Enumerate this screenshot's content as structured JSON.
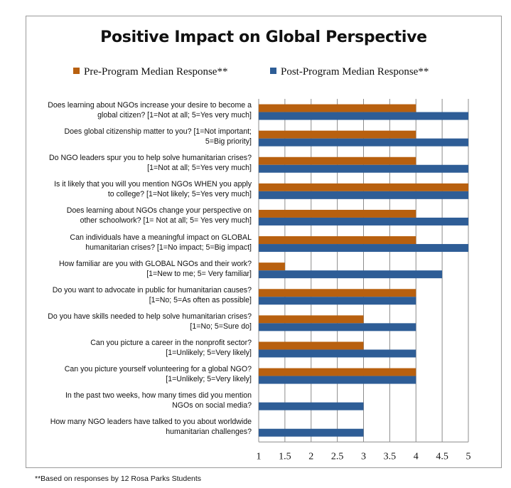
{
  "chart_data": {
    "type": "bar",
    "orientation": "horizontal",
    "title": "Positive Impact on Global Perspective",
    "xlim": [
      1,
      5
    ],
    "xticks": [
      "1",
      "1.5",
      "2",
      "2.5",
      "3",
      "3.5",
      "4",
      "4.5",
      "5"
    ],
    "xtick_values": [
      1,
      1.5,
      2,
      2.5,
      3,
      3.5,
      4,
      4.5,
      5
    ],
    "grid": true,
    "legend_position": "top",
    "categories": [
      {
        "line1": "Does learning about NGOs increase your desire to become a",
        "line2": "global citizen? [1=Not at all; 5=Yes very much]"
      },
      {
        "line1": "Does global citizenship matter to you? [1=Not important;",
        "line2": "5=Big priority]"
      },
      {
        "line1": "Do NGO leaders spur you to help solve humanitarian crises?",
        "line2": "[1=Not at all; 5=Yes very much]"
      },
      {
        "line1": "Is it likely that you will you mention NGOs WHEN you apply",
        "line2": "to college? [1=Not likely; 5=Yes very much]"
      },
      {
        "line1": "Does learning about NGOs change your perspective on",
        "line2": "other schoolwork? [1= Not at all; 5= Yes very much]"
      },
      {
        "line1": "Can individuals have a meaningful impact on GLOBAL",
        "line2": "humanitarian crises? [1=No impact; 5=Big impact]"
      },
      {
        "line1": "How familiar are you with GLOBAL NGOs and their work?",
        "line2": "[1=New to me; 5= Very familiar]"
      },
      {
        "line1": "Do you want to advocate in public for humanitarian causes?",
        "line2": "[1=No; 5=As often as possible]"
      },
      {
        "line1": "Do you have skills needed to help solve humanitarian crises?",
        "line2": "[1=No; 5=Sure do]"
      },
      {
        "line1": "Can you picture a career in the nonprofit sector?",
        "line2": "[1=Unlikely; 5=Very likely]"
      },
      {
        "line1": "Can you picture yourself volunteering for a global NGO?",
        "line2": "[1=Unlikely; 5=Very likely]"
      },
      {
        "line1": "In the past two weeks, how many times did you mention",
        "line2": "NGOs on social media?"
      },
      {
        "line1": "How many NGO leaders have talked to you about worldwide",
        "line2": "humanitarian challenges?"
      }
    ],
    "series": [
      {
        "name": "Pre-Program Median Response**",
        "color": "#b8600f",
        "values": [
          4,
          4,
          4,
          5,
          4,
          4,
          1.5,
          4,
          3,
          3,
          4,
          null,
          null
        ]
      },
      {
        "name": "Post-Program Median Response**",
        "color": "#2e5d96",
        "values": [
          5,
          5,
          5,
          5,
          5,
          5,
          4.5,
          4,
          4,
          4,
          4,
          3,
          3
        ]
      }
    ],
    "footnote": "**Based on responses by 12 Rosa Parks Students"
  }
}
